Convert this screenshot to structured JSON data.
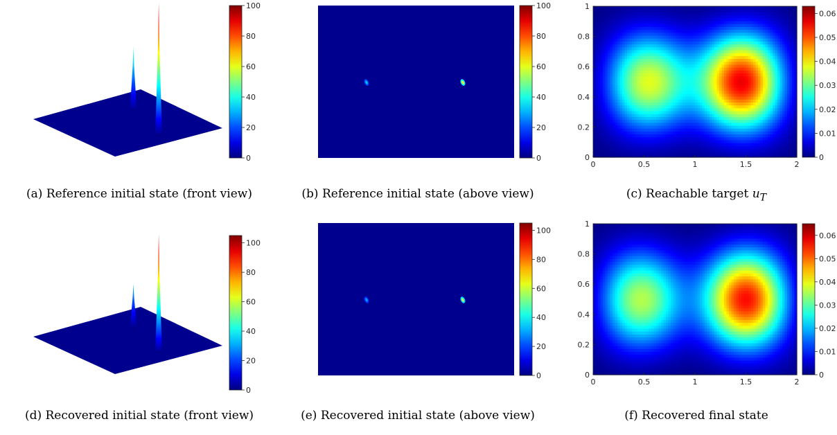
{
  "colormap": "jet",
  "colors": {
    "background": "#00008f",
    "frame": "#262626"
  },
  "panels": [
    {
      "id": "a",
      "caption": "(a) Reference initial state (front view)",
      "view": "front3d",
      "chart_data": {
        "type": "surface",
        "zlim": [
          0,
          100
        ],
        "colorbar_ticks": [
          "0",
          "20",
          "40",
          "60",
          "80",
          "100"
        ],
        "peaks": [
          {
            "label": "left",
            "height": 46
          },
          {
            "label": "right",
            "height": 100
          }
        ]
      }
    },
    {
      "id": "b",
      "caption": "(b) Reference initial state (above view)",
      "view": "above",
      "chart_data": {
        "type": "heatmap",
        "zlim": [
          0,
          100
        ],
        "colorbar_ticks": [
          "0",
          "20",
          "40",
          "60",
          "80",
          "100"
        ],
        "spots": [
          {
            "value": 32
          },
          {
            "value": 62
          }
        ]
      }
    },
    {
      "id": "c",
      "caption": "(c) Reachable target ",
      "caption_math": "u",
      "caption_sub": "T",
      "view": "field",
      "chart_data": {
        "type": "heatmap",
        "xlim": [
          0,
          2
        ],
        "ylim": [
          0,
          1
        ],
        "zlim": [
          0,
          0.063
        ],
        "x_ticks": [
          "0",
          "0.5",
          "1",
          "1.5",
          "2"
        ],
        "y_ticks": [
          "0",
          "0.2",
          "0.4",
          "0.6",
          "0.8",
          "1"
        ],
        "colorbar_ticks": [
          "0",
          "0.01",
          "0.02",
          "0.03",
          "0.04",
          "0.05",
          "0.06"
        ],
        "blobs": [
          {
            "x": 0.5,
            "y": 0.5,
            "value": 0.042
          },
          {
            "x": 1.5,
            "y": 0.5,
            "value": 0.063
          }
        ]
      }
    },
    {
      "id": "d",
      "caption": "(d) Recovered initial state (front view)",
      "view": "front3d",
      "chart_data": {
        "type": "surface",
        "zlim": [
          0,
          105
        ],
        "colorbar_ticks": [
          "0",
          "20",
          "40",
          "60",
          "80",
          "100"
        ],
        "peaks": [
          {
            "label": "left",
            "height": 35
          },
          {
            "label": "right",
            "height": 105
          }
        ]
      }
    },
    {
      "id": "e",
      "caption": "(e) Recovered initial state (above view)",
      "view": "above",
      "chart_data": {
        "type": "heatmap",
        "zlim": [
          0,
          105
        ],
        "colorbar_ticks": [
          "0",
          "20",
          "40",
          "60",
          "80",
          "100"
        ],
        "spots": [
          {
            "value": 30
          },
          {
            "value": 60
          }
        ]
      }
    },
    {
      "id": "f",
      "caption": "(f) Recovered final state",
      "view": "field",
      "chart_data": {
        "type": "heatmap",
        "xlim": [
          0,
          2
        ],
        "ylim": [
          0,
          1
        ],
        "zlim": [
          0,
          0.065
        ],
        "x_ticks": [
          "0",
          "0.5",
          "1",
          "1.5",
          "2"
        ],
        "y_ticks": [
          "0",
          "0.2",
          "0.4",
          "0.6",
          "0.8",
          "1"
        ],
        "colorbar_ticks": [
          "0",
          "0.01",
          "0.02",
          "0.03",
          "0.04",
          "0.05",
          "0.06"
        ],
        "blobs": [
          {
            "x": 0.42,
            "y": 0.5,
            "value": 0.042
          },
          {
            "x": 1.55,
            "y": 0.5,
            "value": 0.065
          }
        ]
      }
    }
  ]
}
